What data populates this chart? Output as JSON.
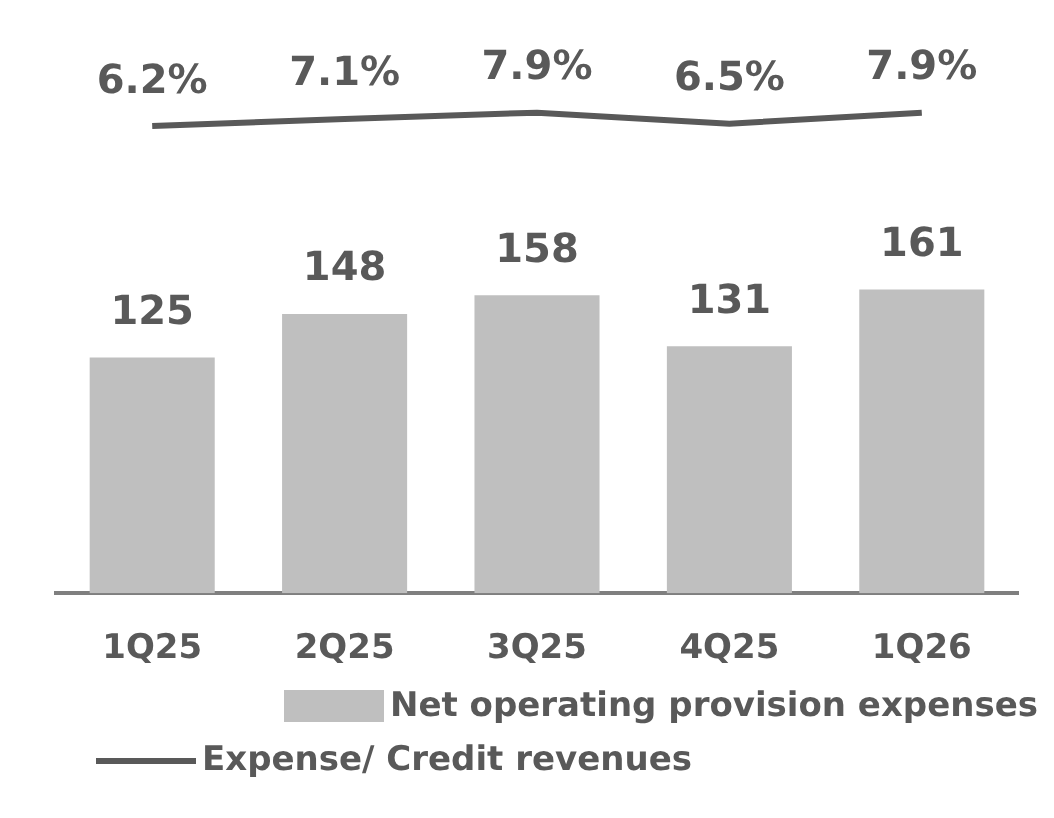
{
  "chart_data": [
    {
      "type": "line",
      "categories": [
        null,
        null,
        null,
        null,
        null
      ],
      "series": [
        {
          "name": "Expense/ Credit revenues",
          "color": "#595959",
          "values": [
            6.2,
            7.1,
            7.9,
            6.5,
            7.9
          ],
          "value_labels": [
            "6.2%",
            "7.1%",
            "7.9%",
            "6.5%",
            "7.9%"
          ]
        }
      ],
      "legend": "bottom left",
      "marker": "none",
      "line_style": "solid"
    },
    {
      "type": "bar",
      "categories": [
        "1Q25",
        "2Q25",
        "3Q25",
        "4Q25",
        "1Q26"
      ],
      "series": [
        {
          "name": "Net operating provision expenses",
          "color": "#bfbfbf",
          "values": [
            125,
            148,
            158,
            131,
            161
          ]
        }
      ],
      "data_labels": true,
      "legend": "bottom right"
    }
  ]
}
